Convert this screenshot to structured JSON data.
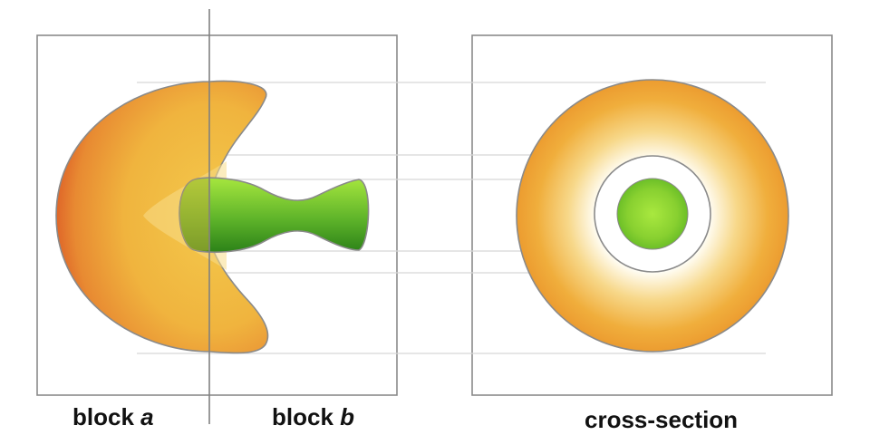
{
  "labels": {
    "block_a_prefix": "block",
    "block_a_var": "a",
    "block_b_prefix": "block",
    "block_b_var": "b",
    "cross_section": "cross-section"
  },
  "colors": {
    "frame": "#8a8a8a",
    "guide": "#d6d6d6",
    "orange_edge": "#e0602a",
    "orange_mid": "#eda63a",
    "orange_light": "#f3c04a",
    "green_light": "#9be03a",
    "green_dark": "#2f8a1a"
  }
}
